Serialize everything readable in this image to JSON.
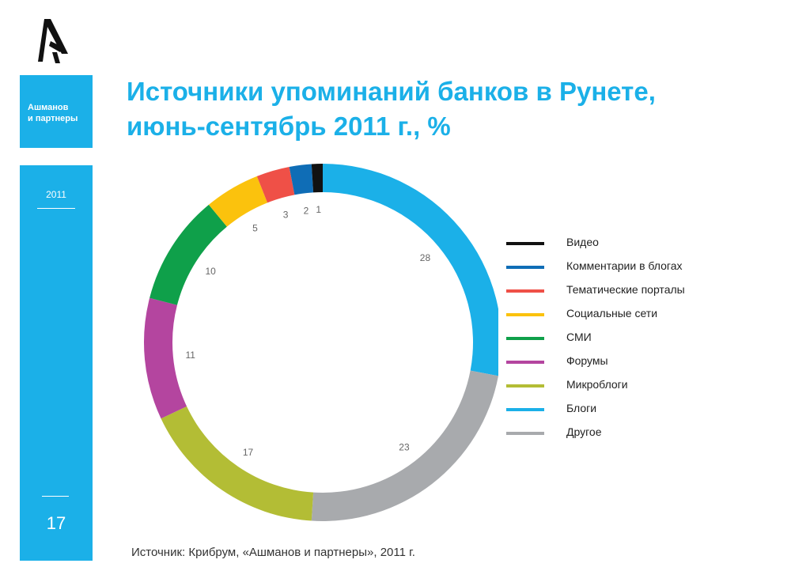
{
  "brand": {
    "logo_icon": "agency-logo-icon",
    "name_line1": "Ашманов",
    "name_line2": "и партнеры"
  },
  "sidebar": {
    "year": "2011",
    "page_number": "17"
  },
  "title": {
    "line1": "Источники упоминаний банков в Рунете,",
    "line2": "июнь-сентябрь 2011 г., %"
  },
  "source_note": "Источник: Крибрум, «Ашманов и партнеры», 2011 г.",
  "chart_data": {
    "type": "pie",
    "variant": "ring",
    "title": "Источники упоминаний банков в Рунете, июнь-сентябрь 2011 г., %",
    "legend_position": "right",
    "slices": [
      {
        "label": "Блоги",
        "value": 28,
        "color": "#1bb0e8"
      },
      {
        "label": "Другое",
        "value": 23,
        "color": "#a8aaad"
      },
      {
        "label": "Микроблоги",
        "value": 17,
        "color": "#b3bd35"
      },
      {
        "label": "Форумы",
        "value": 11,
        "color": "#b4459f"
      },
      {
        "label": "СМИ",
        "value": 10,
        "color": "#0fa04a"
      },
      {
        "label": "Социальные сети",
        "value": 5,
        "color": "#fbc20d"
      },
      {
        "label": "Тематические порталы",
        "value": 3,
        "color": "#ef5047"
      },
      {
        "label": "Комментарии в блогах",
        "value": 2,
        "color": "#0f6db6"
      },
      {
        "label": "Видео",
        "value": 1,
        "color": "#111111"
      }
    ],
    "legend_order": [
      "Видео",
      "Комментарии в блогах",
      "Тематические порталы",
      "Социальные сети",
      "СМИ",
      "Форумы",
      "Микроблоги",
      "Блоги",
      "Другое"
    ]
  }
}
